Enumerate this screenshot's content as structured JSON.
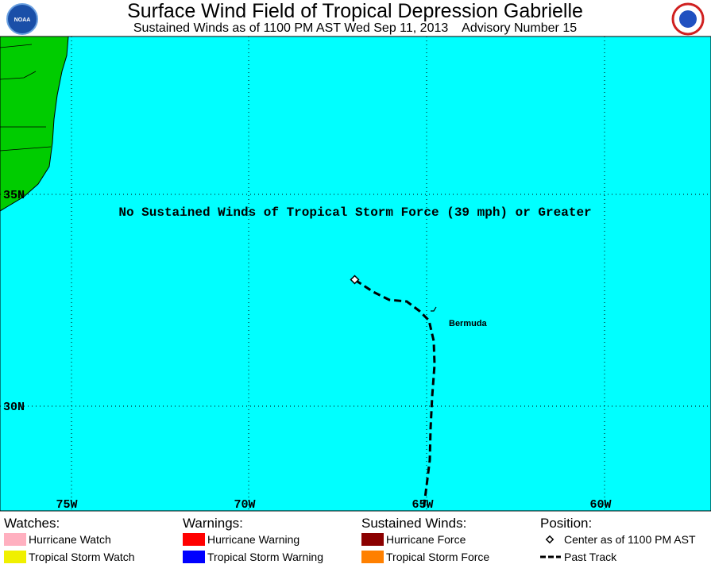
{
  "header": {
    "title": "Surface Wind Field of Tropical Depression Gabrielle",
    "subtitle": "Sustained Winds as of 1100 PM AST Wed Sep 11, 2013    Advisory Number 15",
    "left_logo": "NOAA"
  },
  "map": {
    "notice": "No Sustained Winds of Tropical Storm Force (39 mph) or Greater",
    "lat_labels": [
      "35N",
      "30N"
    ],
    "lon_labels": [
      "75W",
      "70W",
      "65W",
      "60W"
    ],
    "places": [
      "Bermuda"
    ]
  },
  "legend": {
    "sections": [
      {
        "heading": "Watches:",
        "items": [
          {
            "label": "Hurricane Watch",
            "color": "#ffb0c0"
          },
          {
            "label": "Tropical Storm Watch",
            "color": "#f0f000"
          }
        ]
      },
      {
        "heading": "Warnings:",
        "items": [
          {
            "label": "Hurricane Warning",
            "color": "#ff0000"
          },
          {
            "label": "Tropical Storm Warning",
            "color": "#0000ff"
          }
        ]
      },
      {
        "heading": "Sustained Winds:",
        "items": [
          {
            "label": "Hurricane Force",
            "color": "#8b0000"
          },
          {
            "label": "Tropical Storm Force",
            "color": "#ff8000"
          }
        ]
      },
      {
        "heading": "Position:",
        "items": [
          {
            "label": "Center as of 1100 PM AST"
          },
          {
            "label": "Past Track"
          }
        ]
      }
    ]
  }
}
